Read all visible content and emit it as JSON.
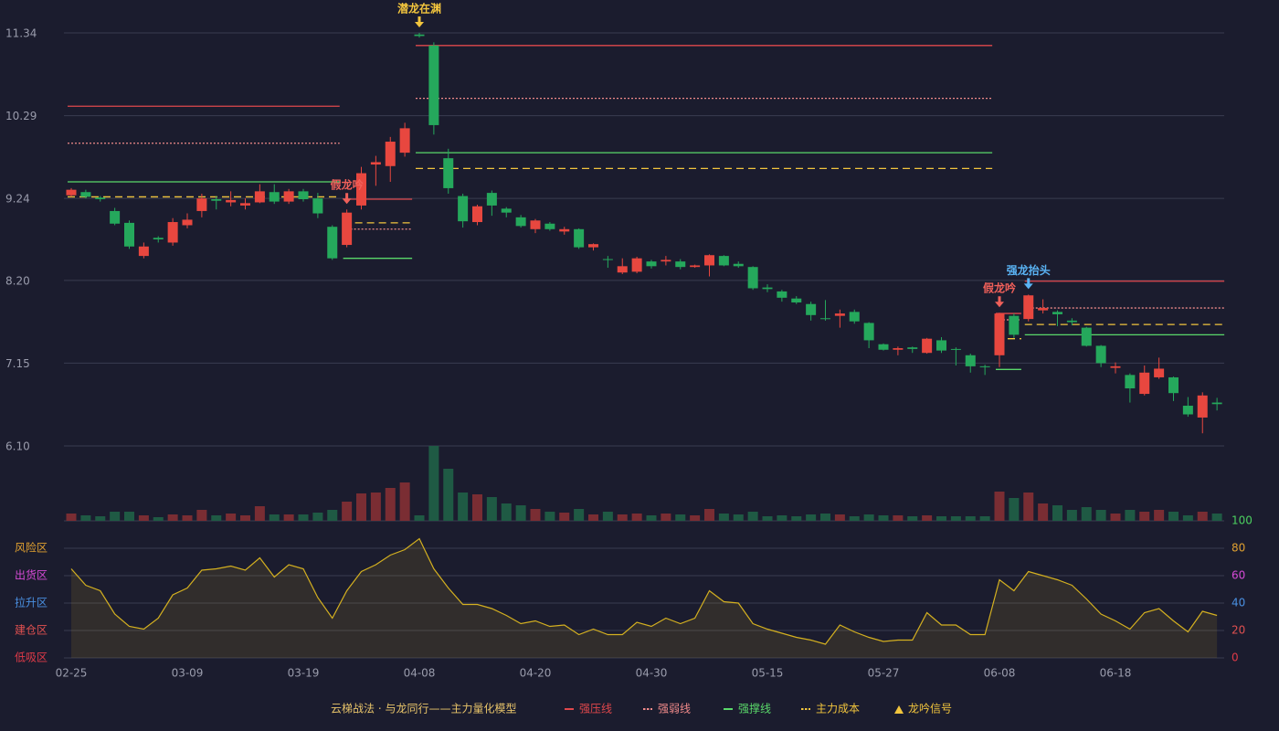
{
  "chart_data": [
    {
      "type": "candlestick",
      "categories": [
        "02-25",
        null,
        null,
        null,
        null,
        null,
        null,
        null,
        "03-09",
        null,
        null,
        null,
        null,
        null,
        null,
        null,
        "03-19",
        null,
        null,
        null,
        null,
        null,
        null,
        null,
        "04-08",
        null,
        null,
        null,
        null,
        null,
        null,
        null,
        "04-20",
        null,
        null,
        null,
        null,
        null,
        null,
        null,
        "04-30",
        null,
        null,
        null,
        null,
        null,
        null,
        null,
        "05-15",
        null,
        null,
        null,
        null,
        null,
        null,
        null,
        "05-27",
        null,
        null,
        null,
        null,
        null,
        null,
        null,
        "06-08",
        null,
        null,
        null,
        null,
        null,
        null,
        null,
        "06-18",
        null,
        null,
        null,
        null,
        null,
        null,
        null
      ],
      "open": [
        9.28,
        9.32,
        9.25,
        9.08,
        8.93,
        8.51,
        8.74,
        8.68,
        8.9,
        9.08,
        9.23,
        9.19,
        9.15,
        9.19,
        9.32,
        9.2,
        9.33,
        9.24,
        8.88,
        8.65,
        9.15,
        9.67,
        9.65,
        9.82,
        11.32,
        11.18,
        9.75,
        9.27,
        8.94,
        9.31,
        9.11,
        9.0,
        8.85,
        8.92,
        8.82,
        8.85,
        8.62,
        8.47,
        8.3,
        8.31,
        8.44,
        8.44,
        8.44,
        8.37,
        8.39,
        8.51,
        8.41,
        8.37,
        8.11,
        8.06,
        7.97,
        7.9,
        7.72,
        7.75,
        7.8,
        7.66,
        7.39,
        7.32,
        7.35,
        7.28,
        7.44,
        7.33,
        7.25,
        7.11,
        7.25,
        7.75,
        7.71,
        7.82,
        7.8,
        7.69,
        7.6,
        7.37,
        7.09,
        7.0,
        6.76,
        6.97,
        6.97,
        6.61,
        6.46,
        6.65
      ],
      "close": [
        9.35,
        9.26,
        9.23,
        8.92,
        8.63,
        8.63,
        8.72,
        8.94,
        8.97,
        9.24,
        9.21,
        9.22,
        9.18,
        9.33,
        9.2,
        9.33,
        9.23,
        9.05,
        8.48,
        9.06,
        9.56,
        9.7,
        9.96,
        10.13,
        11.3,
        10.17,
        9.37,
        8.95,
        9.14,
        9.15,
        9.06,
        8.89,
        8.96,
        8.85,
        8.85,
        8.62,
        8.66,
        8.46,
        8.38,
        8.48,
        8.38,
        8.46,
        8.37,
        8.39,
        8.52,
        8.39,
        8.38,
        8.1,
        8.09,
        7.98,
        7.92,
        7.76,
        7.71,
        7.78,
        7.68,
        7.44,
        7.32,
        7.34,
        7.33,
        7.46,
        7.31,
        7.32,
        7.11,
        7.1,
        7.78,
        7.51,
        8.01,
        7.85,
        7.77,
        7.67,
        7.37,
        7.15,
        7.11,
        6.83,
        7.03,
        7.08,
        6.77,
        6.5,
        6.74,
        6.63
      ],
      "low": [
        9.26,
        9.24,
        9.2,
        8.9,
        8.6,
        8.48,
        8.68,
        8.64,
        8.86,
        9.0,
        9.1,
        9.14,
        9.1,
        9.18,
        9.17,
        9.17,
        9.2,
        8.99,
        8.46,
        8.62,
        9.1,
        9.4,
        9.45,
        9.77,
        11.28,
        10.05,
        9.3,
        8.87,
        8.9,
        9.02,
        9.0,
        8.87,
        8.8,
        8.83,
        8.78,
        8.6,
        8.58,
        8.36,
        8.28,
        8.29,
        8.35,
        8.39,
        8.34,
        8.36,
        8.25,
        8.38,
        8.36,
        8.08,
        8.05,
        7.93,
        7.9,
        7.69,
        7.69,
        7.6,
        7.65,
        7.34,
        7.31,
        7.25,
        7.28,
        7.27,
        7.28,
        7.12,
        7.03,
        7.0,
        7.1,
        7.47,
        7.68,
        7.78,
        7.62,
        7.63,
        7.36,
        7.1,
        7.02,
        6.65,
        6.74,
        6.95,
        6.67,
        6.47,
        6.26,
        6.55
      ],
      "high": [
        9.37,
        9.35,
        9.27,
        9.12,
        8.96,
        8.68,
        8.76,
        8.99,
        9.05,
        9.3,
        9.27,
        9.33,
        9.24,
        9.42,
        9.42,
        9.36,
        9.36,
        9.31,
        8.9,
        9.1,
        9.64,
        9.78,
        10.02,
        10.2,
        11.34,
        11.22,
        9.87,
        9.3,
        9.16,
        9.34,
        9.13,
        9.03,
        8.98,
        8.94,
        8.88,
        8.86,
        8.67,
        8.51,
        8.48,
        8.5,
        8.46,
        8.51,
        8.47,
        8.4,
        8.53,
        8.52,
        8.44,
        8.38,
        8.15,
        8.08,
        8.0,
        7.93,
        7.95,
        7.83,
        7.83,
        7.67,
        7.4,
        7.36,
        7.36,
        7.47,
        7.48,
        7.35,
        7.27,
        7.13,
        7.79,
        7.78,
        8.02,
        7.96,
        7.82,
        7.72,
        7.61,
        7.38,
        7.16,
        7.02,
        7.12,
        7.22,
        6.98,
        6.72,
        6.78,
        6.71
      ],
      "up_color": "#e8473f",
      "down_color": "#25a85c",
      "ylim": [
        6.1,
        11.34
      ],
      "yticks": [
        {
          "value": 6.1,
          "label": "6.10"
        },
        7.15,
        {
          "value": 8.2,
          "label": "8.20"
        },
        9.24,
        10.29,
        11.34
      ],
      "grid": true,
      "level_lines": [
        {
          "name": "强压线",
          "color": "#e0474c",
          "dash": "none",
          "segments": [
            {
              "x": [
                0,
                18
              ],
              "value": 10.41
            },
            {
              "x": [
                19,
                23
              ],
              "value": 9.23
            },
            {
              "x": [
                24,
                63
              ],
              "value": 11.18
            },
            {
              "x": [
                64,
                65
              ],
              "value": 7.78
            },
            {
              "x": [
                66,
                79
              ],
              "value": 8.19
            }
          ]
        },
        {
          "name": "强弱线",
          "color": "#f08a8a",
          "dash": "2 2",
          "segments": [
            {
              "x": [
                0,
                18
              ],
              "value": 9.94
            },
            {
              "x": [
                19,
                23
              ],
              "value": 8.85
            },
            {
              "x": [
                24,
                63
              ],
              "value": 10.51
            },
            {
              "x": [
                64,
                65
              ],
              "value": 7.7
            },
            {
              "x": [
                66,
                79
              ],
              "value": 7.85
            }
          ]
        },
        {
          "name": "强撑线",
          "color": "#5ad86a",
          "dash": "none",
          "segments": [
            {
              "x": [
                0,
                18
              ],
              "value": 9.45
            },
            {
              "x": [
                19,
                23
              ],
              "value": 8.48
            },
            {
              "x": [
                24,
                63
              ],
              "value": 9.82
            },
            {
              "x": [
                64,
                65
              ],
              "value": 7.07
            },
            {
              "x": [
                66,
                79
              ],
              "value": 7.51
            }
          ]
        },
        {
          "name": "主力成本",
          "color": "#f2c53d",
          "dash": "8 5",
          "segments": [
            {
              "x": [
                0,
                18
              ],
              "value": 9.26
            },
            {
              "x": [
                19,
                23
              ],
              "value": 8.93
            },
            {
              "x": [
                24,
                63
              ],
              "value": 9.62
            },
            {
              "x": [
                64,
                65
              ],
              "value": 7.46
            },
            {
              "x": [
                66,
                79
              ],
              "value": 7.64
            }
          ]
        }
      ],
      "signals": {
        "name": "龙吟信号",
        "color": "#f2c53d",
        "items": [
          {
            "x": 19,
            "label": "假龙吟",
            "color": "#f0605a"
          },
          {
            "x": 24,
            "label": "潜龙在渊",
            "color": "#f2c53d"
          },
          {
            "x": 64,
            "label": "假龙吟",
            "color": "#f0605a"
          },
          {
            "x": 66,
            "label": "强龙抬头",
            "color": "#5ab4f5"
          }
        ]
      },
      "title": "云梯战法 · 与龙同行——主力量化模型",
      "title_color": "#e8c46a"
    },
    {
      "type": "volume",
      "values": [
        8,
        6,
        5,
        10,
        10,
        6,
        4,
        7,
        6,
        12,
        6,
        8,
        6,
        16,
        7,
        7,
        7,
        9,
        12,
        21,
        30,
        31,
        36,
        42,
        6,
        82,
        57,
        31,
        29,
        26,
        19,
        17,
        13,
        10,
        9,
        13,
        7,
        10,
        7,
        8,
        6,
        8,
        7,
        6,
        13,
        8,
        7,
        10,
        5,
        6,
        5,
        7,
        8,
        7,
        5,
        7,
        6,
        6,
        5,
        6,
        5,
        5,
        5,
        5,
        32,
        25,
        31,
        19,
        17,
        12,
        15,
        12,
        8,
        12,
        10,
        12,
        10,
        6,
        10,
        8
      ],
      "up_color": "#7a2d33",
      "down_color": "#1f5a44"
    },
    {
      "type": "line",
      "values": [
        65,
        53,
        49,
        32,
        23,
        21,
        29,
        46,
        51,
        64,
        65,
        67,
        64,
        73,
        59,
        68,
        65,
        44,
        29,
        49,
        63,
        68,
        75,
        79,
        87,
        65,
        51,
        39,
        39,
        36,
        31,
        25,
        27,
        23,
        24,
        17,
        21,
        17,
        17,
        26,
        23,
        29,
        25,
        29,
        49,
        41,
        40,
        25,
        21,
        18,
        15,
        13,
        10,
        24,
        19,
        15,
        12,
        13,
        13,
        33,
        24,
        24,
        17,
        17,
        57,
        49,
        63,
        60,
        57,
        53,
        43,
        32,
        27,
        21,
        33,
        36,
        27,
        19,
        34,
        31
      ],
      "color": "#d4b020",
      "ylim": [
        0,
        100
      ],
      "yticks": [
        0,
        20,
        40,
        60,
        80,
        100
      ],
      "ytick_colors": [
        "#e03a48",
        "#e05050",
        "#4a90e2",
        "#d64ad6",
        "#e0a030",
        "#4cd060"
      ],
      "zones": [
        {
          "label": "风险区",
          "color": "#e0a030"
        },
        {
          "label": "出货区",
          "color": "#d64ad6"
        },
        {
          "label": "拉升区",
          "color": "#4a90e2"
        },
        {
          "label": "建仓区",
          "color": "#e05050"
        },
        {
          "label": "低吸区",
          "color": "#e03a48"
        }
      ],
      "grid": true
    }
  ]
}
